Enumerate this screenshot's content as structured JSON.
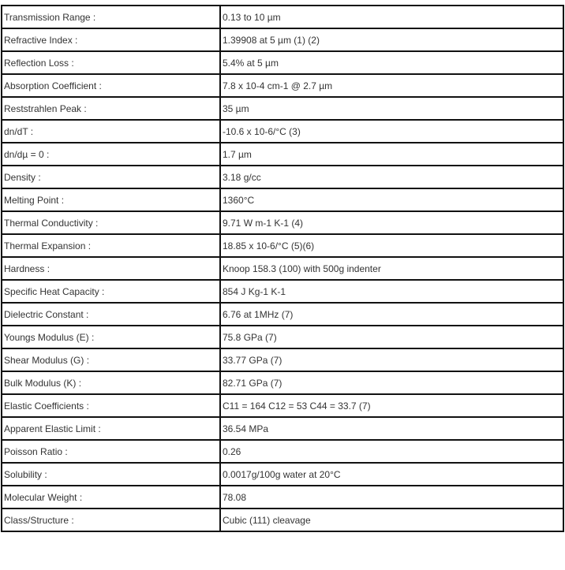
{
  "properties": [
    {
      "label": "Transmission Range :",
      "value": "0.13 to 10 µm"
    },
    {
      "label": "Refractive Index :",
      "value": "1.39908 at 5 µm (1) (2)"
    },
    {
      "label": "Reflection Loss :",
      "value": "5.4% at 5 µm"
    },
    {
      "label": "Absorption Coefficient :",
      "value": "7.8 x 10-4 cm-1 @ 2.7 µm"
    },
    {
      "label": "Reststrahlen Peak :",
      "value": "35 µm"
    },
    {
      "label": "dn/dT :",
      "value": "-10.6 x 10-6/°C (3)"
    },
    {
      "label": "dn/dµ = 0 :",
      "value": "1.7 µm"
    },
    {
      "label": "Density :",
      "value": "3.18 g/cc"
    },
    {
      "label": "Melting Point :",
      "value": "1360°C"
    },
    {
      "label": "Thermal Conductivity :",
      "value": "9.71 W m-1 K-1 (4)"
    },
    {
      "label": "Thermal Expansion :",
      "value": "18.85 x 10-6/°C (5)(6)"
    },
    {
      "label": "Hardness :",
      "value": "Knoop 158.3 (100) with 500g indenter"
    },
    {
      "label": "Specific Heat Capacity :",
      "value": "854 J Kg-1 K-1"
    },
    {
      "label": "Dielectric Constant :",
      "value": "6.76 at 1MHz (7)"
    },
    {
      "label": "Youngs Modulus (E) :",
      "value": "75.8 GPa (7)"
    },
    {
      "label": "Shear Modulus (G) :",
      "value": "33.77 GPa (7)"
    },
    {
      "label": "Bulk Modulus (K) :",
      "value": "82.71 GPa (7)"
    },
    {
      "label": "Elastic Coefficients :",
      "value": "C11 = 164 C12 = 53 C44 = 33.7 (7)"
    },
    {
      "label": "Apparent Elastic Limit :",
      "value": "36.54 MPa"
    },
    {
      "label": "Poisson Ratio :",
      "value": "0.26"
    },
    {
      "label": "Solubility :",
      "value": "0.0017g/100g water at 20°C"
    },
    {
      "label": "Molecular Weight :",
      "value": "78.08"
    },
    {
      "label": "Class/Structure :",
      "value": "Cubic (111) cleavage"
    }
  ]
}
